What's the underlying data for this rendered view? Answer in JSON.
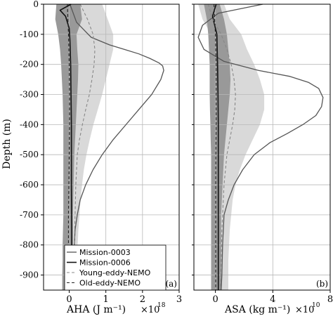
{
  "chart_data": [
    {
      "type": "line",
      "panel_label": "(a)",
      "ylabel": "Depth (m)",
      "xlabel": "AHA (J m⁻¹)",
      "x_multiplier": "×10",
      "x_exponent": "18",
      "xlim": [
        -0.7,
        3.0
      ],
      "ylim": [
        -950,
        0
      ],
      "xticks": [
        "0",
        "1",
        "2",
        "3"
      ],
      "yticks": [
        "0",
        "-100",
        "-200",
        "-300",
        "-400",
        "-500",
        "-600",
        "-700",
        "-800",
        "-900"
      ],
      "grid": true,
      "bands": [
        {
          "name": "Young-eddy-NEMO spread",
          "color": "#d9d9d9",
          "depth": [
            0,
            -50,
            -100,
            -150,
            -200,
            -250,
            -300,
            -350,
            -400,
            -450,
            -500,
            -550,
            -600,
            -650,
            -700,
            -750,
            -800,
            -850,
            -900,
            -950
          ],
          "low": [
            0.15,
            0.18,
            0.12,
            0.05,
            0.02,
            0.02,
            0.03,
            0.05,
            0.06,
            0.06,
            0.06,
            0.06,
            0.05,
            0.04,
            0.04,
            0.04,
            0.03,
            0.03,
            0.03,
            0.03
          ],
          "high": [
            0.9,
            1.05,
            1.2,
            1.2,
            1.1,
            1.0,
            0.9,
            0.78,
            0.66,
            0.56,
            0.47,
            0.4,
            0.35,
            0.31,
            0.28,
            0.25,
            0.23,
            0.22,
            0.21,
            0.21
          ]
        },
        {
          "name": "Old-eddy-NEMO spread",
          "color": "#999999",
          "depth": [
            0,
            -50,
            -100,
            -150,
            -200,
            -250,
            -300,
            -350,
            -400,
            -450,
            -500,
            -550,
            -600,
            -650,
            -700,
            -750,
            -800,
            -850,
            -900,
            -950
          ],
          "low": [
            -0.35,
            -0.38,
            -0.3,
            -0.25,
            -0.22,
            -0.2,
            -0.18,
            -0.17,
            -0.16,
            -0.16,
            -0.16,
            -0.16,
            -0.16,
            -0.16,
            -0.16,
            -0.17,
            -0.18,
            -0.18,
            -0.19,
            -0.19
          ],
          "high": [
            0.3,
            0.35,
            0.2,
            0.22,
            0.25,
            0.24,
            0.22,
            0.2,
            0.18,
            0.16,
            0.14,
            0.13,
            0.12,
            0.11,
            0.1,
            0.1,
            0.1,
            0.1,
            0.09,
            0.09
          ]
        }
      ],
      "series": [
        {
          "name": "Mission-0003",
          "color": "#555555",
          "width": 1.3,
          "dash": "",
          "x": [
            0.02,
            0.2,
            0.6,
            1.1,
            1.5,
            1.9,
            2.2,
            2.45,
            2.55,
            2.58,
            2.5,
            2.25,
            1.9,
            1.55,
            1.2,
            0.9,
            0.65,
            0.45,
            0.3,
            0.22,
            0.16,
            0.12,
            0.09
          ],
          "y": [
            0,
            -60,
            -110,
            -135,
            -150,
            -165,
            -180,
            -195,
            -205,
            -220,
            -250,
            -300,
            -350,
            -400,
            -450,
            -500,
            -550,
            -600,
            -650,
            -700,
            -750,
            -850,
            -950
          ]
        },
        {
          "name": "Mission-0006",
          "color": "#111111",
          "width": 1.6,
          "dash": "",
          "x": [
            0.05,
            -0.25,
            -0.1,
            0.0,
            0.02,
            0.03,
            0.04,
            0.05,
            0.06,
            0.06,
            0.06,
            0.07,
            0.07
          ],
          "y": [
            0,
            -20,
            -40,
            -80,
            -120,
            -160,
            -200,
            -300,
            -400,
            -500,
            -600,
            -750,
            -950
          ]
        },
        {
          "name": "Young-eddy-NEMO",
          "color": "#888888",
          "width": 1.1,
          "dash": "4,3",
          "x": [
            0.3,
            0.5,
            0.65,
            0.7,
            0.68,
            0.62,
            0.55,
            0.45,
            0.36,
            0.28,
            0.22,
            0.18,
            0.15,
            0.13
          ],
          "y": [
            0,
            -50,
            -100,
            -150,
            -200,
            -250,
            -300,
            -350,
            -400,
            -450,
            -500,
            -600,
            -750,
            -950
          ]
        },
        {
          "name": "Old-eddy-NEMO",
          "color": "#222222",
          "width": 1.1,
          "dash": "4,3",
          "x": [
            -0.05,
            -0.02,
            0.0,
            0.01,
            0.01,
            0.0,
            -0.01,
            -0.02,
            -0.02,
            -0.02
          ],
          "y": [
            0,
            -100,
            -200,
            -300,
            -400,
            -500,
            -600,
            -700,
            -800,
            -950
          ]
        }
      ],
      "legend": [
        "Mission-0003",
        "Mission-0006",
        "Young-eddy-NEMO",
        "Old-eddy-NEMO"
      ],
      "legend_position": "lower-right"
    },
    {
      "type": "line",
      "panel_label": "(b)",
      "xlabel": "ASA (kg m⁻¹)",
      "x_multiplier": "×10",
      "x_exponent": "10",
      "xlim": [
        -1.5,
        8.0
      ],
      "ylim": [
        -950,
        0
      ],
      "xticks": [
        "0",
        "4",
        "8"
      ],
      "grid": true,
      "bands": [
        {
          "name": "Young-eddy-NEMO spread",
          "color": "#d9d9d9",
          "depth": [
            0,
            -50,
            -100,
            -150,
            -200,
            -250,
            -300,
            -350,
            -400,
            -450,
            -500,
            -550,
            -600,
            -650,
            -700,
            -750,
            -800,
            -850,
            -900,
            -950
          ],
          "low": [
            -1.2,
            -0.9,
            -0.3,
            0.0,
            0.0,
            0.05,
            0.1,
            0.12,
            0.12,
            0.1,
            0.1,
            0.1,
            0.1,
            0.1,
            0.1,
            0.1,
            0.1,
            0.1,
            0.1,
            0.1
          ],
          "high": [
            0.6,
            1.0,
            1.8,
            2.2,
            2.7,
            3.1,
            3.4,
            3.4,
            3.1,
            2.6,
            2.1,
            1.7,
            1.4,
            1.2,
            1.1,
            1.0,
            0.95,
            0.9,
            0.9,
            0.9
          ]
        },
        {
          "name": "Old-eddy-NEMO spread",
          "color": "#999999",
          "depth": [
            0,
            -50,
            -100,
            -150,
            -200,
            -250,
            -300,
            -350,
            -400,
            -450,
            -500,
            -550,
            -600,
            -650,
            -700,
            -750,
            -800,
            -850,
            -900,
            -950
          ],
          "low": [
            -0.8,
            -0.6,
            -0.5,
            -0.45,
            -0.4,
            -0.4,
            -0.4,
            -0.38,
            -0.35,
            -0.33,
            -0.3,
            -0.3,
            -0.3,
            -0.3,
            -0.3,
            -0.3,
            -0.3,
            -0.3,
            -0.3,
            -0.3
          ],
          "high": [
            0.3,
            0.6,
            0.8,
            0.9,
            1.0,
            1.05,
            1.0,
            0.9,
            0.8,
            0.7,
            0.6,
            0.55,
            0.5,
            0.45,
            0.4,
            0.4,
            0.4,
            0.4,
            0.4,
            0.4
          ]
        }
      ],
      "series": [
        {
          "name": "Mission-0003",
          "color": "#555555",
          "width": 1.3,
          "dash": "",
          "x": [
            3.3,
            0.2,
            -0.9,
            -1.2,
            -0.8,
            0.6,
            3.0,
            5.2,
            6.5,
            7.2,
            7.5,
            7.4,
            7.0,
            6.1,
            5.0,
            3.8,
            2.7,
            1.9,
            1.3,
            0.9,
            0.6,
            0.5,
            0.45,
            0.4
          ],
          "y": [
            0,
            -30,
            -70,
            -110,
            -150,
            -190,
            -220,
            -240,
            -260,
            -280,
            -310,
            -340,
            -370,
            -400,
            -430,
            -460,
            -500,
            -550,
            -600,
            -650,
            -700,
            -800,
            -900,
            -950
          ]
        },
        {
          "name": "Mission-0006",
          "color": "#111111",
          "width": 1.6,
          "dash": "",
          "x": [
            0.05,
            -0.2,
            0.1,
            0.15,
            0.18,
            0.2,
            0.2,
            0.2,
            0.2,
            0.2
          ],
          "y": [
            0,
            -40,
            -100,
            -200,
            -300,
            -400,
            -500,
            -600,
            -800,
            -950
          ]
        },
        {
          "name": "Young-eddy-NEMO",
          "color": "#888888",
          "width": 1.1,
          "dash": "4,3",
          "x": [
            -0.5,
            -0.2,
            0.4,
            0.8,
            1.1,
            1.3,
            1.4,
            1.35,
            1.2,
            1.0,
            0.8,
            0.6,
            0.45,
            0.35
          ],
          "y": [
            0,
            -50,
            -100,
            -150,
            -200,
            -250,
            -300,
            -350,
            -400,
            -450,
            -500,
            -600,
            -750,
            -950
          ]
        },
        {
          "name": "Old-eddy-NEMO",
          "color": "#222222",
          "width": 1.1,
          "dash": "4,3",
          "x": [
            -0.1,
            0.0,
            0.05,
            0.05,
            0.05,
            0.03,
            0.02,
            0.02,
            0.02
          ],
          "y": [
            0,
            -100,
            -200,
            -300,
            -400,
            -500,
            -600,
            -800,
            -950
          ]
        }
      ]
    }
  ]
}
